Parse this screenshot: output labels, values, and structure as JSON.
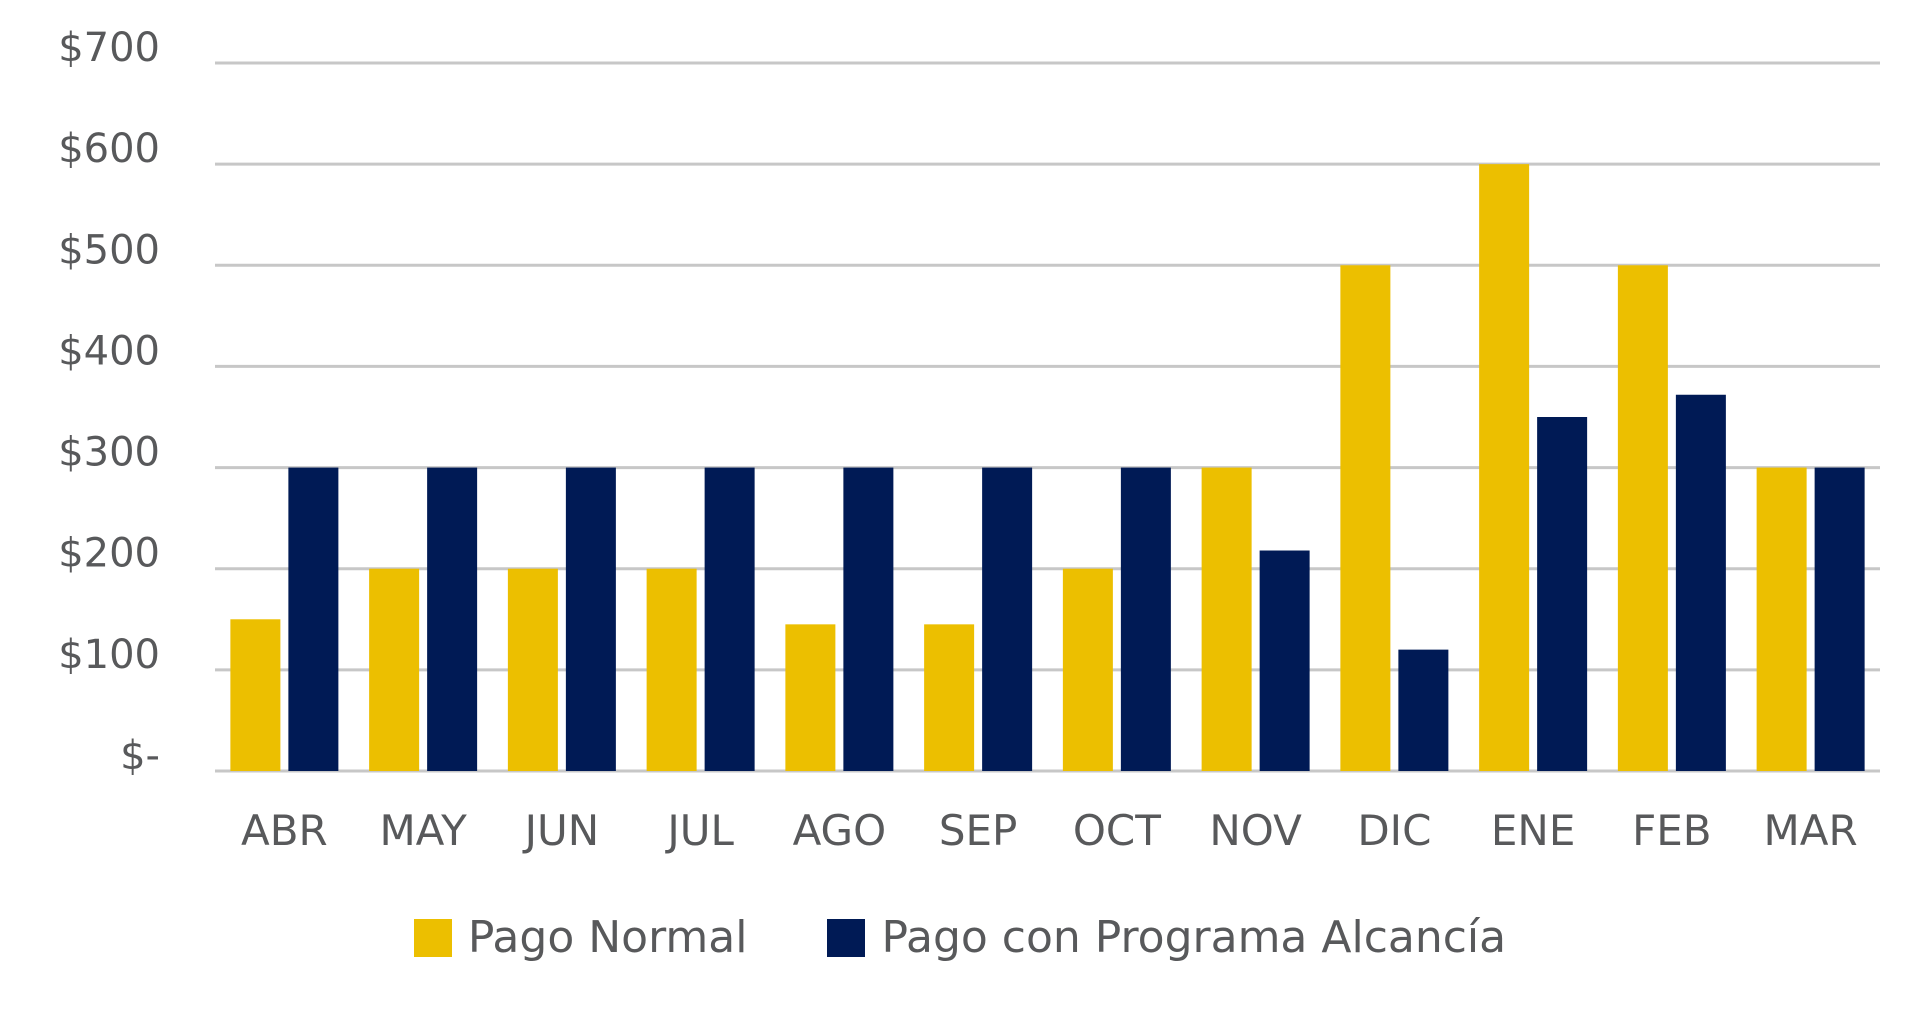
{
  "chart_data": {
    "type": "bar",
    "categories": [
      "ABR",
      "MAY",
      "JUN",
      "JUL",
      "AGO",
      "SEP",
      "OCT",
      "NOV",
      "DIC",
      "ENE",
      "FEB",
      "MAR"
    ],
    "series": [
      {
        "name": "Pago Normal",
        "color": "#ecbf00",
        "values": [
          150,
          200,
          200,
          200,
          145,
          145,
          200,
          300,
          500,
          600,
          500,
          300
        ]
      },
      {
        "name": "Pago con Programa Alcancía",
        "color": "#001a55",
        "values": [
          300,
          300,
          300,
          300,
          300,
          300,
          300,
          218,
          120,
          350,
          372,
          300
        ]
      }
    ],
    "y_ticks": [
      "$-",
      "$100",
      "$200",
      "$300",
      "$400",
      "$500",
      "$600",
      "$700"
    ],
    "ylim": [
      0,
      700
    ],
    "grid": true,
    "gridline_color": "#c7c7c7",
    "legend_position": "bottom",
    "title": "",
    "xlabel": "",
    "ylabel": ""
  }
}
